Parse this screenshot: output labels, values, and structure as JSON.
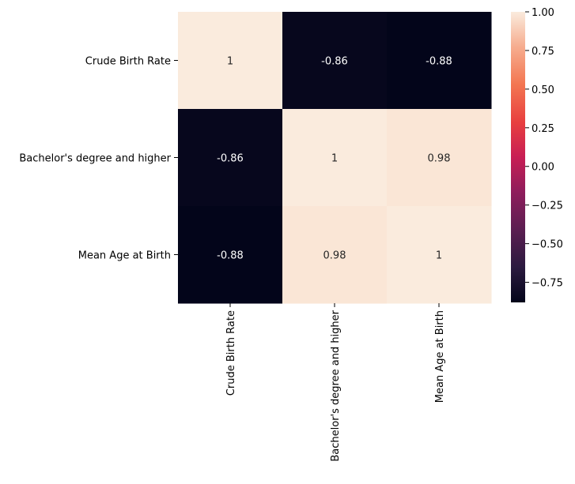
{
  "chart_data": {
    "type": "heatmap",
    "title": "",
    "xlabel": "",
    "ylabel": "",
    "x_categories": [
      "Crude Birth Rate",
      "Bachelor's degree and higher",
      "Mean Age at Birth"
    ],
    "y_categories": [
      "Crude Birth Rate",
      "Bachelor's degree and higher",
      "Mean Age at Birth"
    ],
    "values": [
      [
        1,
        -0.86,
        -0.88
      ],
      [
        -0.86,
        1,
        0.98
      ],
      [
        -0.88,
        0.98,
        1
      ]
    ],
    "annotations": [
      [
        "1",
        "-0.86",
        "-0.88"
      ],
      [
        "-0.86",
        "1",
        "0.98"
      ],
      [
        "-0.88",
        "0.98",
        "1"
      ]
    ],
    "colorbar": {
      "min": -0.88,
      "max": 1.0,
      "ticks": [
        1.0,
        0.75,
        0.5,
        0.25,
        0.0,
        -0.25,
        -0.5,
        -0.75
      ],
      "tick_labels": [
        "1.00",
        "0.75",
        "0.50",
        "0.25",
        "0.00",
        "−0.25",
        "−0.50",
        "−0.75"
      ],
      "colormap": "rocket"
    }
  }
}
